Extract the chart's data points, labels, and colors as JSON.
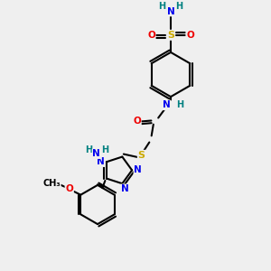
{
  "bg_color": "#efefef",
  "atom_colors": {
    "C": "#000000",
    "N": "#0000ee",
    "O": "#ee0000",
    "S": "#ccaa00",
    "H": "#008080"
  },
  "bond_color": "#000000",
  "bond_width": 1.5,
  "figsize": [
    3.0,
    3.0
  ],
  "dpi": 100
}
